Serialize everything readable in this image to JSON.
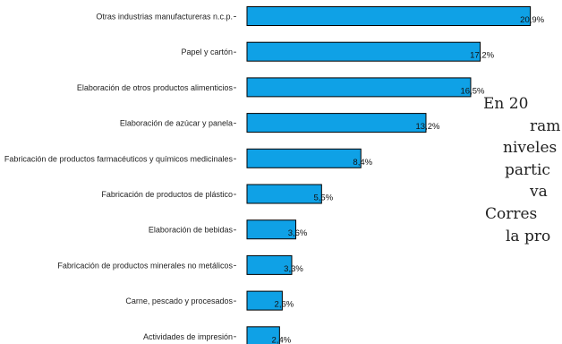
{
  "chart_data": {
    "type": "bar",
    "orientation": "horizontal",
    "categories": [
      "Otras industrias manufactureras n.c.p.",
      "Papel y cartón",
      "Elaboración de otros productos alimenticios",
      "Elaboración de azúcar y panela",
      "Fabricación de productos farmacéuticos y químicos medicinales",
      "Fabricación de productos de plástico",
      "Elaboración de bebidas",
      "Fabricación de productos minerales no metálicos",
      "Carne, pescado y procesados",
      "Actividades de impresión"
    ],
    "values": [
      20.9,
      17.2,
      16.5,
      13.2,
      8.4,
      5.5,
      3.6,
      3.3,
      2.6,
      2.4
    ],
    "value_labels": [
      "20,9%",
      "17,2%",
      "16,5%",
      "13,2%",
      "8,4%",
      "5,5%",
      "3,6%",
      "3,3%",
      "2,6%",
      "2,4%"
    ],
    "xlim": [
      0,
      21
    ],
    "bar_color": "#0fa1e6",
    "bar_outline": "#000000",
    "title": "",
    "xlabel": "",
    "ylabel": "",
    "grid": false,
    "legend": "none"
  },
  "side_text": {
    "lines": [
      "En 20",
      "ram",
      "niveles",
      "partic",
      "va",
      "Corres",
      "la pro"
    ]
  }
}
